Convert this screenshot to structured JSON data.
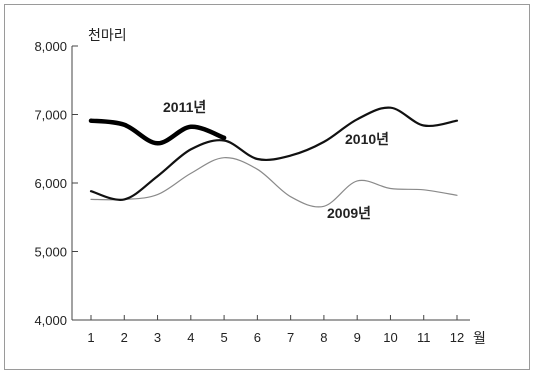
{
  "chart_data": {
    "type": "line",
    "y_unit_label": "천마리",
    "x_unit_label": "월",
    "x": [
      1,
      2,
      3,
      4,
      5,
      6,
      7,
      8,
      9,
      10,
      11,
      12
    ],
    "x_tick_labels": [
      "1",
      "2",
      "3",
      "4",
      "5",
      "6",
      "7",
      "8",
      "9",
      "10",
      "11",
      "12"
    ],
    "y_tick_labels": [
      "8,000",
      "7,000",
      "6,000",
      "5,000",
      "4,000"
    ],
    "y_ticks": [
      8000,
      7000,
      6000,
      5000,
      4000
    ],
    "ylim": [
      4000,
      8000
    ],
    "xlim": [
      1,
      12
    ],
    "grid": false,
    "series": [
      {
        "name": "2009년",
        "color": "#8a8a8a",
        "style": "thin",
        "points": [
          [
            1,
            5760
          ],
          [
            2,
            5760
          ],
          [
            3,
            5830
          ],
          [
            4,
            6140
          ],
          [
            5,
            6370
          ],
          [
            6,
            6200
          ],
          [
            7,
            5800
          ],
          [
            8,
            5660
          ],
          [
            9,
            6030
          ],
          [
            10,
            5920
          ],
          [
            11,
            5900
          ],
          [
            12,
            5820
          ]
        ]
      },
      {
        "name": "2010년",
        "color": "#111111",
        "style": "medium",
        "points": [
          [
            1,
            5880
          ],
          [
            2,
            5760
          ],
          [
            3,
            6100
          ],
          [
            4,
            6490
          ],
          [
            5,
            6620
          ],
          [
            6,
            6350
          ],
          [
            7,
            6400
          ],
          [
            8,
            6600
          ],
          [
            9,
            6930
          ],
          [
            10,
            7100
          ],
          [
            11,
            6840
          ],
          [
            12,
            6910
          ]
        ]
      },
      {
        "name": "2011년",
        "color": "#000000",
        "style": "thick",
        "points": [
          [
            1,
            6910
          ],
          [
            2,
            6850
          ],
          [
            3,
            6580
          ],
          [
            4,
            6820
          ],
          [
            5,
            6660
          ]
        ]
      }
    ]
  }
}
